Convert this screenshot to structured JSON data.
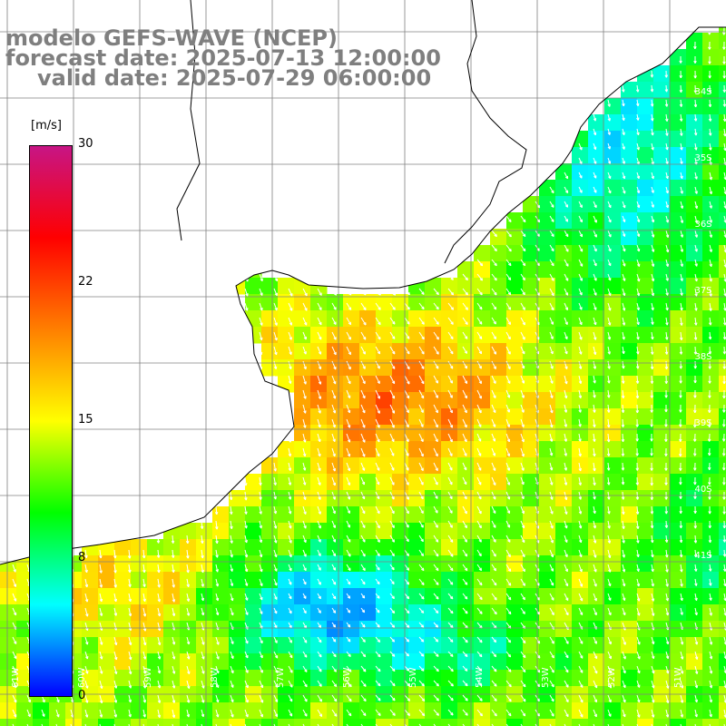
{
  "title": {
    "model": "modelo GEFS-WAVE (NCEP)",
    "forecast": "forecast date: 2025-07-13 12:00:00",
    "valid": "valid date: 2025-07-29 06:00:00"
  },
  "colorbar": {
    "unit": "[m/s]",
    "ticks": [
      "30",
      "22",
      "15",
      "8",
      "0"
    ],
    "tick_values": [
      30,
      22,
      15,
      8,
      0
    ],
    "colors": [
      "#0000ff",
      "#00ffff",
      "#00ff00",
      "#ffff00",
      "#ff7f00",
      "#ff0000",
      "#c71585"
    ]
  },
  "lat_labels": [
    "34S",
    "35S",
    "36S",
    "37S",
    "38S",
    "39S",
    "40S",
    "41S"
  ],
  "lon_labels": [
    "61W",
    "60W",
    "59W",
    "58W",
    "57W",
    "56W",
    "55W",
    "54W",
    "53W",
    "52W",
    "51W"
  ],
  "land_color": "#ffffff",
  "grid_color": "#808080"
}
